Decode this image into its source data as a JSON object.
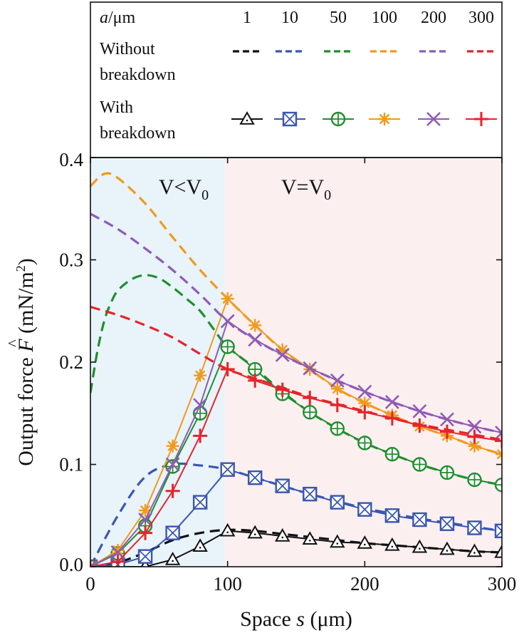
{
  "chart_data": {
    "type": "line",
    "xlabel": {
      "prefix": "Space ",
      "var": "s",
      "suffix": " (μm)"
    },
    "ylabel": {
      "prefix": "Output force ",
      "var": "F",
      "suffix": " (mN/m",
      "sup": "2",
      "close": ")"
    },
    "xlim": [
      0,
      300
    ],
    "ylim": [
      0,
      0.4
    ],
    "xticks": [
      0,
      100,
      200,
      300
    ],
    "yticks": [
      "0.0",
      "0.1",
      "0.2",
      "0.3",
      "0.4"
    ],
    "grid": false,
    "regions": [
      {
        "name": "V<V0",
        "main": "V<V",
        "sub": "0",
        "x_from": 0,
        "x_to": 98,
        "color": "#e9f3fa"
      },
      {
        "name": "V=V0",
        "main": "V=V",
        "sub": "0",
        "x_from": 98,
        "x_to": 300,
        "color": "#fbeff0"
      }
    ],
    "legend": {
      "header_var": "a",
      "header_unit": "/μm",
      "without_label": [
        "Without",
        "breakdown"
      ],
      "with_label": [
        "With",
        "breakdown"
      ]
    },
    "series": [
      {
        "name": "1",
        "color": "#111111",
        "marker": "triangle",
        "without_breakdown": {
          "x": [
            0,
            20,
            40,
            60,
            80,
            100,
            120,
            140,
            160,
            180,
            200,
            220,
            240,
            260,
            280,
            300
          ],
          "y": [
            0,
            0.004,
            0.014,
            0.026,
            0.033,
            0.036,
            0.035,
            0.032,
            0.029,
            0.026,
            0.023,
            0.021,
            0.019,
            0.017,
            0.015,
            0.014
          ]
        },
        "with_breakdown": {
          "x": [
            0,
            20,
            40,
            60,
            80,
            100,
            120,
            140,
            160,
            180,
            200,
            220,
            240,
            260,
            280,
            300
          ],
          "y": [
            0,
            0,
            0,
            0.007,
            0.02,
            0.035,
            0.033,
            0.03,
            0.027,
            0.024,
            0.023,
            0.021,
            0.019,
            0.017,
            0.015,
            0.014
          ]
        }
      },
      {
        "name": "10",
        "color": "#3a56b0",
        "marker": "box-x",
        "without_breakdown": {
          "x": [
            0,
            20,
            40,
            60,
            80,
            100,
            120,
            140,
            160,
            180,
            200,
            220,
            240,
            260,
            280,
            300
          ],
          "y": [
            0,
            0.05,
            0.088,
            0.1,
            0.099,
            0.095,
            0.087,
            0.079,
            0.071,
            0.064,
            0.057,
            0.052,
            0.047,
            0.043,
            0.039,
            0.035
          ]
        },
        "with_breakdown": {
          "x": [
            0,
            20,
            40,
            60,
            80,
            100,
            120,
            140,
            160,
            180,
            200,
            220,
            240,
            260,
            280,
            300
          ],
          "y": [
            0,
            0.002,
            0.01,
            0.033,
            0.063,
            0.095,
            0.087,
            0.079,
            0.071,
            0.063,
            0.056,
            0.05,
            0.046,
            0.042,
            0.038,
            0.035
          ]
        }
      },
      {
        "name": "50",
        "color": "#1f8f2e",
        "marker": "circle-plus",
        "without_breakdown": {
          "x": [
            0,
            5,
            10,
            15,
            20,
            30,
            40,
            50,
            60,
            70,
            80,
            90,
            100,
            120,
            140,
            160,
            180,
            200,
            220,
            240,
            260,
            280,
            300
          ],
          "y": [
            0.17,
            0.21,
            0.24,
            0.258,
            0.27,
            0.281,
            0.285,
            0.282,
            0.273,
            0.262,
            0.25,
            0.232,
            0.215,
            0.194,
            0.171,
            0.151,
            0.135,
            0.121,
            0.11,
            0.1,
            0.092,
            0.085,
            0.08
          ]
        },
        "with_breakdown": {
          "x": [
            0,
            20,
            40,
            60,
            80,
            100,
            120,
            140,
            160,
            180,
            200,
            220,
            240,
            260,
            280,
            300
          ],
          "y": [
            0,
            0.013,
            0.04,
            0.098,
            0.15,
            0.215,
            0.193,
            0.169,
            0.151,
            0.135,
            0.121,
            0.11,
            0.1,
            0.092,
            0.085,
            0.08
          ]
        }
      },
      {
        "name": "100",
        "color": "#f09a1c",
        "marker": "asterisk",
        "without_breakdown": {
          "x": [
            0,
            10,
            20,
            40,
            60,
            80,
            100,
            120,
            140,
            160,
            180,
            200,
            220,
            240,
            260,
            280,
            300
          ],
          "y": [
            0.372,
            0.384,
            0.38,
            0.355,
            0.322,
            0.29,
            0.262,
            0.236,
            0.212,
            0.193,
            0.174,
            0.16,
            0.148,
            0.137,
            0.128,
            0.118,
            0.11
          ]
        },
        "with_breakdown": {
          "x": [
            0,
            20,
            40,
            60,
            80,
            100,
            120,
            140,
            160,
            180,
            200,
            220,
            240,
            260,
            280,
            300
          ],
          "y": [
            0,
            0.016,
            0.055,
            0.118,
            0.187,
            0.262,
            0.236,
            0.212,
            0.193,
            0.174,
            0.16,
            0.148,
            0.137,
            0.128,
            0.118,
            0.11
          ]
        }
      },
      {
        "name": "200",
        "color": "#8e5bb5",
        "marker": "x",
        "without_breakdown": {
          "x": [
            0,
            20,
            40,
            60,
            80,
            100,
            120,
            140,
            160,
            180,
            200,
            220,
            240,
            260,
            280,
            300
          ],
          "y": [
            0.345,
            0.33,
            0.311,
            0.29,
            0.266,
            0.24,
            0.222,
            0.207,
            0.194,
            0.182,
            0.171,
            0.161,
            0.152,
            0.144,
            0.137,
            0.131
          ]
        },
        "with_breakdown": {
          "x": [
            0,
            20,
            40,
            60,
            80,
            100,
            120,
            140,
            160,
            180,
            200,
            220,
            240,
            260,
            280,
            300
          ],
          "y": [
            0,
            0.014,
            0.046,
            0.1,
            0.158,
            0.24,
            0.222,
            0.207,
            0.194,
            0.182,
            0.171,
            0.161,
            0.152,
            0.144,
            0.137,
            0.131
          ]
        }
      },
      {
        "name": "300",
        "color": "#e5242b",
        "marker": "plus",
        "without_breakdown": {
          "x": [
            0,
            20,
            40,
            60,
            80,
            100,
            120,
            140,
            160,
            180,
            200,
            220,
            240,
            260,
            280,
            300
          ],
          "y": [
            0.254,
            0.246,
            0.236,
            0.224,
            0.208,
            0.193,
            0.184,
            0.175,
            0.166,
            0.159,
            0.152,
            0.145,
            0.139,
            0.134,
            0.129,
            0.124
          ]
        },
        "with_breakdown": {
          "x": [
            0,
            20,
            40,
            60,
            80,
            100,
            120,
            140,
            160,
            180,
            200,
            220,
            240,
            260,
            280,
            300
          ],
          "y": [
            0,
            0.005,
            0.033,
            0.074,
            0.128,
            0.193,
            0.182,
            0.173,
            0.165,
            0.158,
            0.151,
            0.145,
            0.138,
            0.132,
            0.127,
            0.123
          ]
        }
      }
    ]
  }
}
